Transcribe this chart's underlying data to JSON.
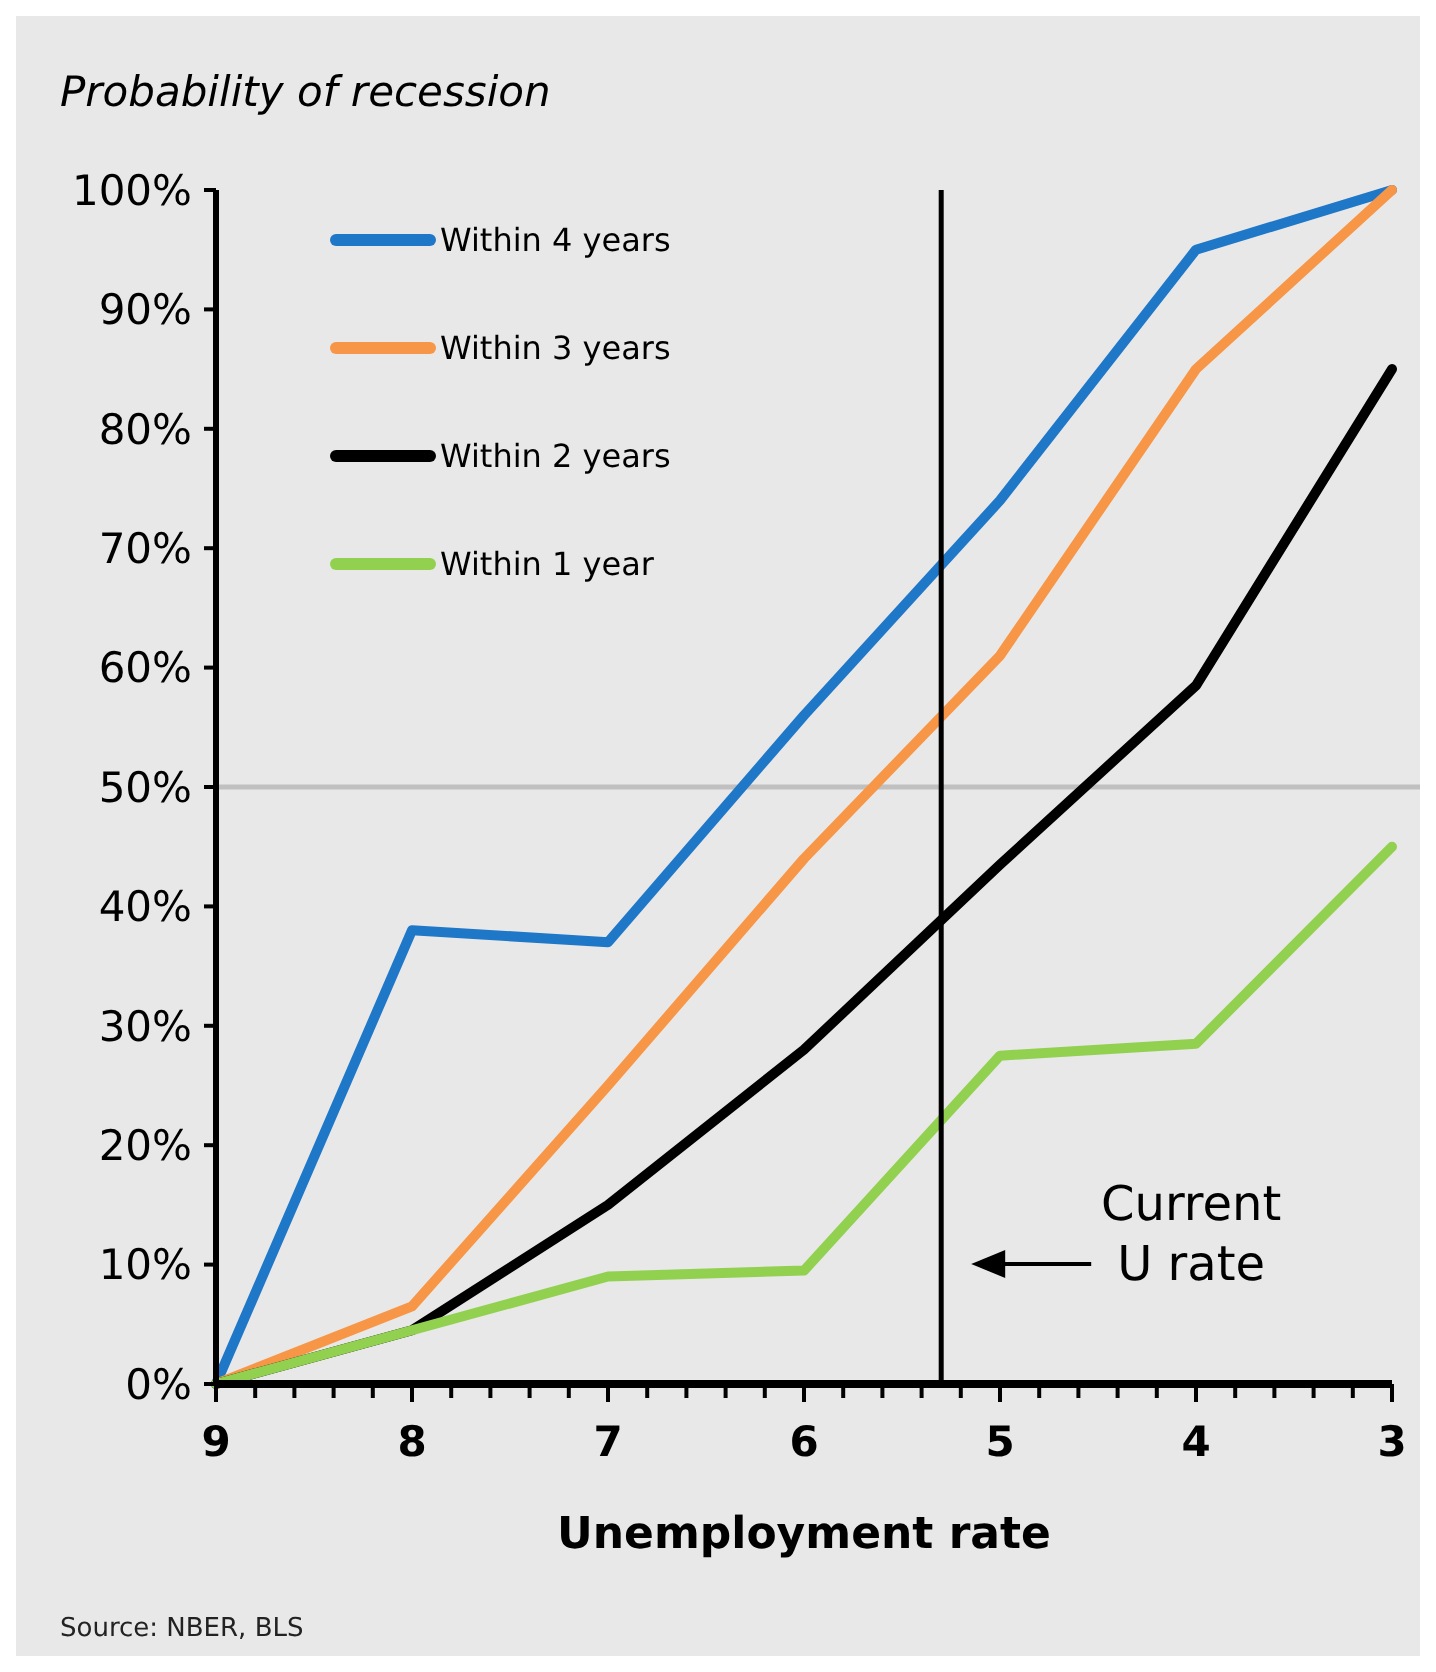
{
  "chart_data": {
    "type": "line",
    "title": "Probability of recession",
    "xlabel": "Unemployment rate",
    "x": [
      9,
      8,
      7,
      6,
      5,
      4,
      3
    ],
    "xlim": [
      9,
      3
    ],
    "xticks": [
      9,
      {
        "value": 8.8,
        "label": null
      },
      {
        "value": 8.6,
        "label": null
      },
      {
        "value": 8.4,
        "label": null
      },
      {
        "value": 8.2,
        "label": null
      },
      8,
      {
        "value": 7.8,
        "label": null
      },
      {
        "value": 7.6,
        "label": null
      },
      {
        "value": 7.4,
        "label": null
      },
      {
        "value": 7.2,
        "label": null
      },
      7,
      {
        "value": 6.8,
        "label": null
      },
      {
        "value": 6.6,
        "label": null
      },
      {
        "value": 6.4,
        "label": null
      },
      {
        "value": 6.2,
        "label": null
      },
      6,
      {
        "value": 5.8,
        "label": null
      },
      {
        "value": 5.6,
        "label": null
      },
      {
        "value": 5.4,
        "label": null
      },
      {
        "value": 5.2,
        "label": null
      },
      5,
      {
        "value": 4.8,
        "label": null
      },
      {
        "value": 4.6,
        "label": null
      },
      {
        "value": 4.4,
        "label": null
      },
      {
        "value": 4.2,
        "label": null
      },
      4,
      {
        "value": 3.8,
        "label": null
      },
      {
        "value": 3.6,
        "label": null
      },
      {
        "value": 3.4,
        "label": null
      },
      {
        "value": 3.2,
        "label": null
      },
      3
    ],
    "ylim": [
      0,
      100
    ],
    "yticks": [
      {
        "value": 0,
        "label": "0%"
      },
      {
        "value": 10,
        "label": "10%"
      },
      {
        "value": 20,
        "label": "20%"
      },
      {
        "value": 30,
        "label": "30%"
      },
      {
        "value": 40,
        "label": "40%"
      },
      {
        "value": 50,
        "label": "50%"
      },
      {
        "value": 60,
        "label": "60%"
      },
      {
        "value": 70,
        "label": "70%"
      },
      {
        "value": 80,
        "label": "80%"
      },
      {
        "value": 90,
        "label": "90%"
      },
      {
        "value": 100,
        "label": "100%"
      }
    ],
    "series": [
      {
        "name": "Within 4 years",
        "color": "#1f77c8",
        "values": [
          0,
          38,
          37,
          56,
          74,
          95,
          100
        ]
      },
      {
        "name": "Within 3 years",
        "color": "#f79646",
        "values": [
          0,
          6.5,
          25,
          44,
          61,
          85,
          100
        ]
      },
      {
        "name": "Within 2 years",
        "color": "#000000",
        "values": [
          0,
          4.5,
          15,
          28,
          43.5,
          58.5,
          85
        ]
      },
      {
        "name": "Within 1 year",
        "color": "#92d050",
        "values": [
          0,
          4.5,
          9,
          9.5,
          27.5,
          28.5,
          45
        ]
      }
    ],
    "ref_lines": [
      {
        "axis": "y",
        "value": 50,
        "color": "#c0c0c0"
      },
      {
        "axis": "x",
        "value": 5.3,
        "color": "#000000"
      }
    ],
    "legend": "top left",
    "grid": false,
    "marker": "none",
    "line_style": "solid",
    "annotations": [
      "Current\nU rate",
      "Source: NBER, BLS"
    ]
  }
}
